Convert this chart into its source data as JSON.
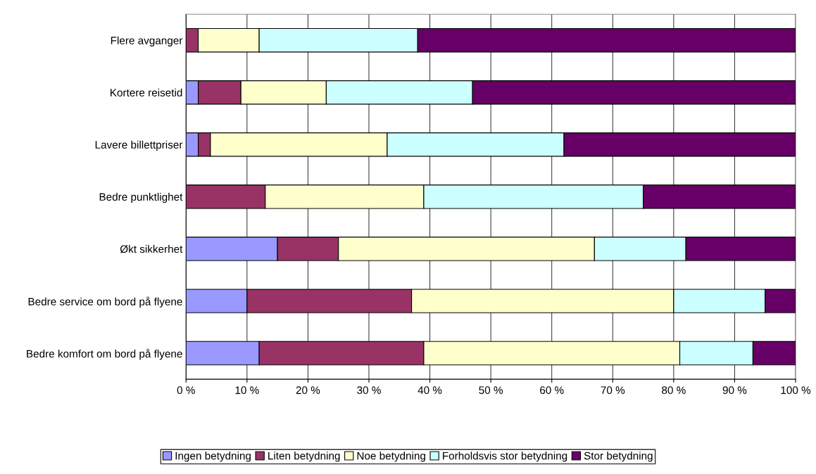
{
  "chart_data": {
    "type": "bar",
    "orientation": "horizontal",
    "stacked": true,
    "categories": [
      "Flere avganger",
      "Kortere reisetid",
      "Lavere billettpriser",
      "Bedre punktlighet",
      "Økt sikkerhet",
      "Bedre service om bord på flyene",
      "Bedre komfort om bord på flyene"
    ],
    "series": [
      {
        "name": "Ingen betydning",
        "color": "#9999ff",
        "values": [
          0,
          2,
          2,
          0,
          15,
          10,
          12
        ]
      },
      {
        "name": "Liten betydning",
        "color": "#993366",
        "values": [
          2,
          7,
          2,
          13,
          10,
          27,
          27
        ]
      },
      {
        "name": "Noe betydning",
        "color": "#ffffcc",
        "values": [
          10,
          14,
          29,
          26,
          42,
          43,
          42
        ]
      },
      {
        "name": "Forholdsvis stor betydning",
        "color": "#ccffff",
        "values": [
          26,
          24,
          29,
          36,
          15,
          15,
          12
        ]
      },
      {
        "name": "Stor betydning",
        "color": "#660066",
        "values": [
          62,
          53,
          38,
          25,
          18,
          5,
          7
        ]
      }
    ],
    "xlim": [
      0,
      100
    ],
    "xticks": [
      {
        "value": 0,
        "label": "0 %"
      },
      {
        "value": 10,
        "label": "10 %"
      },
      {
        "value": 20,
        "label": "20 %"
      },
      {
        "value": 30,
        "label": "30 %"
      },
      {
        "value": 40,
        "label": "40 %"
      },
      {
        "value": 50,
        "label": "50 %"
      },
      {
        "value": 60,
        "label": "60 %"
      },
      {
        "value": 70,
        "label": "70 %"
      },
      {
        "value": 80,
        "label": "80 %"
      },
      {
        "value": 90,
        "label": "90 %"
      },
      {
        "value": 100,
        "label": "100 %"
      }
    ],
    "grid": "x",
    "legend": "bottom"
  }
}
